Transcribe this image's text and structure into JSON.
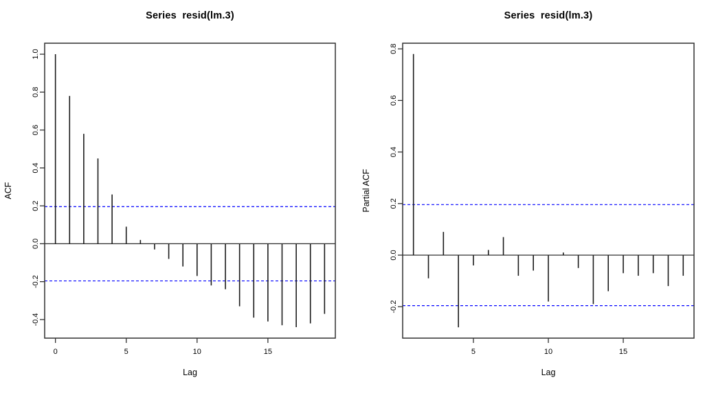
{
  "figure": {
    "background_color": "#ffffff",
    "bar_color": "#1a1a1a",
    "frame_color": "#2f2f2f",
    "axis_text_color": "#000000",
    "confidence_line_color": "#0000ff"
  },
  "chart_data": [
    {
      "type": "bar",
      "subtype": "acf",
      "title": "Series  resid(lm.3)",
      "xlabel": "Lag",
      "ylabel": "ACF",
      "x": [
        0,
        1,
        2,
        3,
        4,
        5,
        6,
        7,
        8,
        9,
        10,
        11,
        12,
        13,
        14,
        15,
        16,
        17,
        18,
        19
      ],
      "values": [
        1.0,
        0.78,
        0.58,
        0.45,
        0.26,
        0.09,
        0.02,
        -0.03,
        -0.08,
        -0.12,
        -0.17,
        -0.22,
        -0.24,
        -0.33,
        -0.39,
        -0.41,
        -0.43,
        -0.44,
        -0.42,
        -0.37
      ],
      "confidence_bands": [
        0.196,
        -0.196
      ],
      "confidence_line_style": "dashed",
      "xlim": [
        -0.76,
        19.76
      ],
      "ylim": [
        -0.498,
        1.058
      ],
      "xticks": [
        0,
        5,
        10,
        15
      ],
      "xtick_labels": [
        "0",
        "5",
        "10",
        "15"
      ],
      "yticks": [
        1.0,
        0.8,
        0.6,
        0.4,
        0.2,
        0.0,
        -0.2,
        -0.4
      ],
      "ytick_labels": [
        "1.0",
        "0.8",
        "0.6",
        "0.4",
        "0.2",
        "0.0",
        "-0.2",
        "-0.4"
      ],
      "grid": false,
      "legend": null
    },
    {
      "type": "bar",
      "subtype": "pacf",
      "title": "Series  resid(lm.3)",
      "xlabel": "Lag",
      "ylabel": "Partial ACF",
      "x": [
        1,
        2,
        3,
        4,
        5,
        6,
        7,
        8,
        9,
        10,
        11,
        12,
        13,
        14,
        15,
        16,
        17,
        18,
        19
      ],
      "values": [
        0.78,
        -0.09,
        0.09,
        -0.28,
        -0.04,
        0.02,
        0.07,
        -0.08,
        -0.06,
        -0.18,
        0.01,
        -0.05,
        -0.19,
        -0.14,
        -0.07,
        -0.08,
        -0.07,
        -0.12,
        -0.08
      ],
      "confidence_bands": [
        0.196,
        -0.196
      ],
      "confidence_line_style": "dashed",
      "xlim": [
        0.28,
        19.72
      ],
      "ylim": [
        -0.322,
        0.822
      ],
      "xticks": [
        5,
        10,
        15
      ],
      "xtick_labels": [
        "5",
        "10",
        "15"
      ],
      "yticks": [
        0.8,
        0.6,
        0.4,
        0.2,
        0.0,
        -0.2
      ],
      "ytick_labels": [
        "0.8",
        "0.6",
        "0.4",
        "0.2",
        "0.0",
        "-0.2"
      ],
      "grid": false,
      "legend": null
    }
  ]
}
